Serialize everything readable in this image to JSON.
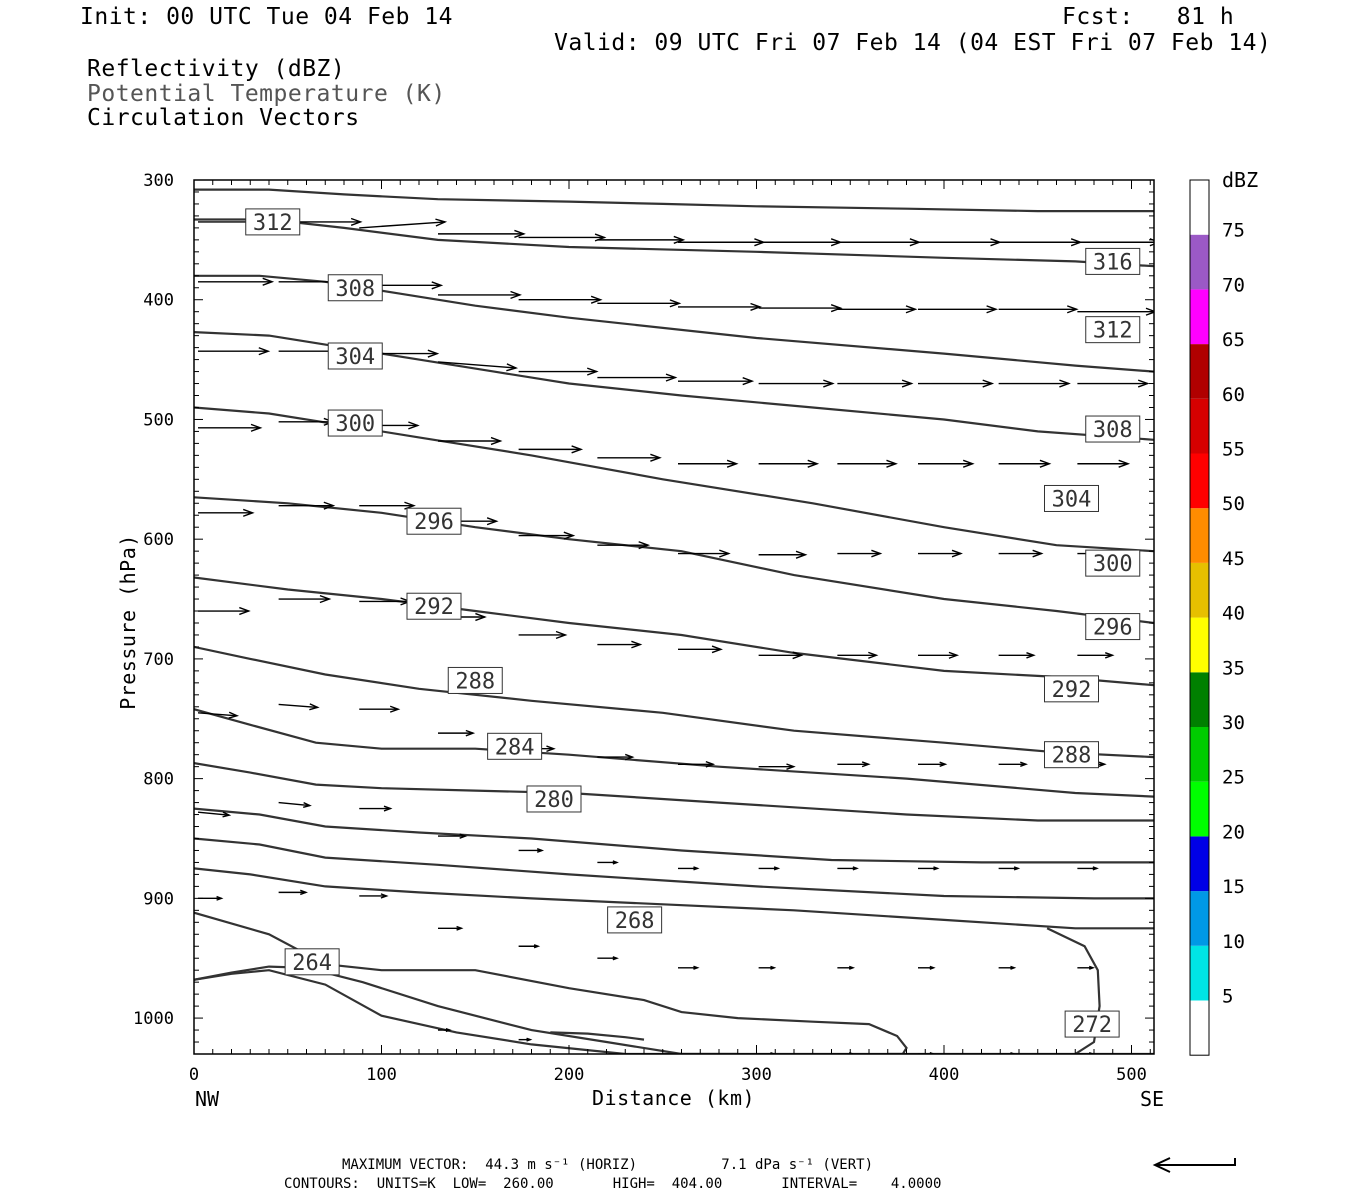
{
  "header": {
    "init": "Init: 00 UTC Tue 04 Feb 14",
    "fcst": "Fcst:   81 h",
    "valid": "Valid: 09 UTC Fri 07 Feb 14 (04 EST Fri 07 Feb 14)",
    "field1": "Reflectivity (dBZ)",
    "field2": "Potential Temperature (K)",
    "field3": "Circulation Vectors"
  },
  "footer": {
    "max_vector": "MAXIMUM VECTOR:  44.3 m s⁻¹ (HORIZ)          7.1 dPa s⁻¹ (VERT)",
    "contours": "CONTOURS:  UNITS=K  LOW=  260.00       HIGH=  404.00       INTERVAL=    4.0000"
  },
  "colorbar": {
    "unit": "dBZ",
    "labels": [
      "5",
      "10",
      "15",
      "20",
      "25",
      "30",
      "35",
      "40",
      "45",
      "50",
      "55",
      "60",
      "65",
      "70",
      "75"
    ],
    "colors": [
      "#ffffff",
      "#00e5e5",
      "#0099e6",
      "#0000e6",
      "#00ff00",
      "#00cc00",
      "#008000",
      "#ffff00",
      "#e6c000",
      "#ff8c00",
      "#ff0000",
      "#d60000",
      "#b00000",
      "#ff00ff",
      "#9b59c6",
      "#ffffff"
    ]
  },
  "chart_data": {
    "type": "cross-section",
    "xlabel": "Distance (km)",
    "ylabel": "Pressure (hPa)",
    "xlim": [
      0,
      512
    ],
    "ylim": [
      300,
      1030
    ],
    "x_ticks": [
      "0",
      "100",
      "200",
      "300",
      "400",
      "500"
    ],
    "x_tick_values": [
      0,
      100,
      200,
      300,
      400,
      500
    ],
    "y_ticks": [
      "300",
      "400",
      "500",
      "600",
      "700",
      "800",
      "900",
      "1000"
    ],
    "y_tick_values": [
      300,
      400,
      500,
      600,
      700,
      800,
      900,
      1000
    ],
    "endpoints": {
      "left": "NW",
      "right": "SE"
    },
    "contour_labels": [
      {
        "label": "312",
        "x": 42,
        "p": 335
      },
      {
        "label": "308",
        "x": 86,
        "p": 390
      },
      {
        "label": "304",
        "x": 86,
        "p": 447
      },
      {
        "label": "300",
        "x": 86,
        "p": 503
      },
      {
        "label": "296",
        "x": 128,
        "p": 585
      },
      {
        "label": "292",
        "x": 128,
        "p": 656
      },
      {
        "label": "288",
        "x": 150,
        "p": 718
      },
      {
        "label": "284",
        "x": 171,
        "p": 773
      },
      {
        "label": "280",
        "x": 192,
        "p": 817
      },
      {
        "label": "268",
        "x": 235,
        "p": 918
      },
      {
        "label": "264",
        "x": 63,
        "p": 953
      },
      {
        "label": "316",
        "x": 490,
        "p": 368
      },
      {
        "label": "312",
        "x": 490,
        "p": 425
      },
      {
        "label": "308",
        "x": 490,
        "p": 508
      },
      {
        "label": "304",
        "x": 468,
        "p": 566
      },
      {
        "label": "300",
        "x": 490,
        "p": 620
      },
      {
        "label": "296",
        "x": 490,
        "p": 673
      },
      {
        "label": "292",
        "x": 468,
        "p": 725
      },
      {
        "label": "288",
        "x": 468,
        "p": 780
      },
      {
        "label": "272",
        "x": 479,
        "p": 1005
      }
    ],
    "contours": [
      {
        "x": [
          0,
          40,
          80,
          130,
          200,
          250,
          300,
          380,
          450,
          512
        ],
        "p": [
          308,
          308,
          312,
          316,
          318,
          320,
          322,
          324,
          326,
          326
        ]
      },
      {
        "x": [
          0,
          40,
          80,
          130,
          200,
          300,
          400,
          470,
          512
        ],
        "p": [
          333,
          333,
          340,
          350,
          356,
          360,
          365,
          368,
          372
        ]
      },
      {
        "x": [
          0,
          35,
          70,
          110,
          150,
          200,
          300,
          400,
          470,
          512
        ],
        "p": [
          380,
          380,
          385,
          395,
          405,
          415,
          432,
          445,
          455,
          460
        ]
      },
      {
        "x": [
          0,
          40,
          80,
          120,
          160,
          200,
          260,
          330,
          400,
          450,
          512
        ],
        "p": [
          427,
          430,
          440,
          450,
          460,
          470,
          480,
          490,
          500,
          510,
          517
        ]
      },
      {
        "x": [
          0,
          40,
          80,
          120,
          180,
          250,
          330,
          400,
          460,
          512
        ],
        "p": [
          490,
          495,
          505,
          515,
          530,
          550,
          570,
          590,
          605,
          610
        ]
      },
      {
        "x": [
          0,
          50,
          100,
          150,
          200,
          260,
          320,
          400,
          460,
          512
        ],
        "p": [
          565,
          570,
          578,
          590,
          600,
          610,
          630,
          650,
          660,
          670
        ]
      },
      {
        "x": [
          0,
          50,
          100,
          150,
          200,
          260,
          320,
          400,
          460,
          512
        ],
        "p": [
          632,
          642,
          650,
          660,
          670,
          680,
          695,
          710,
          715,
          722
        ]
      },
      {
        "x": [
          0,
          30,
          70,
          120,
          180,
          250,
          320,
          400,
          460,
          512
        ],
        "p": [
          690,
          700,
          713,
          725,
          735,
          745,
          760,
          770,
          778,
          782
        ]
      },
      {
        "x": [
          0,
          30,
          65,
          100,
          150,
          200,
          280,
          380,
          470,
          512
        ],
        "p": [
          742,
          755,
          770,
          775,
          775,
          780,
          790,
          800,
          812,
          815
        ]
      },
      {
        "x": [
          0,
          30,
          65,
          100,
          150,
          200,
          280,
          380,
          450,
          512
        ],
        "p": [
          787,
          795,
          805,
          808,
          810,
          812,
          820,
          830,
          835,
          835
        ]
      },
      {
        "x": [
          0,
          35,
          70,
          120,
          180,
          260,
          340,
          420,
          512
        ],
        "p": [
          825,
          830,
          840,
          845,
          850,
          860,
          868,
          870,
          870
        ]
      },
      {
        "x": [
          0,
          35,
          70,
          130,
          200,
          300,
          400,
          480,
          512
        ],
        "p": [
          850,
          855,
          866,
          872,
          880,
          890,
          898,
          900,
          900
        ]
      },
      {
        "x": [
          0,
          30,
          70,
          120,
          180,
          250,
          320,
          400,
          470,
          512
        ],
        "p": [
          875,
          880,
          890,
          895,
          900,
          905,
          910,
          918,
          925,
          925
        ]
      },
      {
        "x": [
          0,
          40,
          70,
          100,
          150,
          200,
          240,
          260,
          290,
          330,
          360,
          375,
          380,
          378,
          370
        ],
        "p": [
          912,
          930,
          955,
          960,
          960,
          975,
          985,
          995,
          1000,
          1003,
          1005,
          1015,
          1025,
          1030,
          1030
        ]
      },
      {
        "x": [
          455,
          475,
          482,
          483,
          480,
          470
        ],
        "p": [
          925,
          940,
          960,
          990,
          1020,
          1030
        ]
      },
      {
        "x": [
          0,
          20,
          40,
          60,
          90,
          130,
          180,
          220,
          260,
          290
        ],
        "p": [
          968,
          962,
          957,
          958,
          970,
          990,
          1010,
          1020,
          1030,
          1030
        ]
      },
      {
        "x": [
          0,
          20,
          40,
          70,
          100,
          140,
          180,
          230,
          280,
          350,
          420,
          512
        ],
        "p": [
          968,
          963,
          960,
          972,
          998,
          1012,
          1022,
          1030,
          1030,
          1030,
          1030,
          1030
        ]
      },
      {
        "x": [
          190,
          210,
          230,
          240
        ],
        "p": [
          1012,
          1013,
          1016,
          1018
        ]
      }
    ],
    "vectors": [
      {
        "x": 0,
        "p": 335,
        "u": 38,
        "w": 0
      },
      {
        "x": 43,
        "p": 335,
        "u": 42,
        "w": 0
      },
      {
        "x": 86,
        "p": 340,
        "u": 44,
        "w": 2
      },
      {
        "x": 128,
        "p": 345,
        "u": 44,
        "w": 0
      },
      {
        "x": 171,
        "p": 348,
        "u": 44,
        "w": 0
      },
      {
        "x": 213,
        "p": 350,
        "u": 44,
        "w": 0
      },
      {
        "x": 256,
        "p": 352,
        "u": 44,
        "w": 0
      },
      {
        "x": 299,
        "p": 352,
        "u": 42,
        "w": 0
      },
      {
        "x": 341,
        "p": 352,
        "u": 42,
        "w": 0
      },
      {
        "x": 384,
        "p": 352,
        "u": 42,
        "w": 0
      },
      {
        "x": 427,
        "p": 352,
        "u": 42,
        "w": 0
      },
      {
        "x": 469,
        "p": 352,
        "u": 42,
        "w": 0
      },
      {
        "x": 0,
        "p": 385,
        "u": 38,
        "w": 0
      },
      {
        "x": 43,
        "p": 385,
        "u": 42,
        "w": 0
      },
      {
        "x": 86,
        "p": 388,
        "u": 42,
        "w": 0
      },
      {
        "x": 128,
        "p": 396,
        "u": 42,
        "w": 0
      },
      {
        "x": 171,
        "p": 400,
        "u": 42,
        "w": 0
      },
      {
        "x": 213,
        "p": 403,
        "u": 42,
        "w": 0
      },
      {
        "x": 256,
        "p": 406,
        "u": 42,
        "w": 0
      },
      {
        "x": 299,
        "p": 407,
        "u": 42,
        "w": 0
      },
      {
        "x": 341,
        "p": 408,
        "u": 40,
        "w": 0
      },
      {
        "x": 384,
        "p": 408,
        "u": 40,
        "w": 0
      },
      {
        "x": 427,
        "p": 408,
        "u": 40,
        "w": 0
      },
      {
        "x": 469,
        "p": 410,
        "u": 40,
        "w": 0
      },
      {
        "x": 0,
        "p": 443,
        "u": 36,
        "w": 0
      },
      {
        "x": 43,
        "p": 443,
        "u": 40,
        "w": 0
      },
      {
        "x": 86,
        "p": 445,
        "u": 40,
        "w": 0
      },
      {
        "x": 128,
        "p": 452,
        "u": 40,
        "w": -2
      },
      {
        "x": 171,
        "p": 460,
        "u": 40,
        "w": 0
      },
      {
        "x": 213,
        "p": 465,
        "u": 40,
        "w": 0
      },
      {
        "x": 256,
        "p": 468,
        "u": 38,
        "w": 0
      },
      {
        "x": 299,
        "p": 470,
        "u": 38,
        "w": 0
      },
      {
        "x": 341,
        "p": 470,
        "u": 38,
        "w": 0
      },
      {
        "x": 384,
        "p": 470,
        "u": 38,
        "w": 0
      },
      {
        "x": 427,
        "p": 470,
        "u": 36,
        "w": 0
      },
      {
        "x": 469,
        "p": 470,
        "u": 36,
        "w": 0
      },
      {
        "x": 0,
        "p": 507,
        "u": 32,
        "w": 0
      },
      {
        "x": 43,
        "p": 502,
        "u": 28,
        "w": 0
      },
      {
        "x": 86,
        "p": 505,
        "u": 30,
        "w": 0
      },
      {
        "x": 128,
        "p": 518,
        "u": 32,
        "w": 0
      },
      {
        "x": 171,
        "p": 525,
        "u": 32,
        "w": 0
      },
      {
        "x": 213,
        "p": 532,
        "u": 32,
        "w": 0
      },
      {
        "x": 256,
        "p": 537,
        "u": 30,
        "w": 0
      },
      {
        "x": 299,
        "p": 537,
        "u": 30,
        "w": 0
      },
      {
        "x": 341,
        "p": 537,
        "u": 30,
        "w": 0
      },
      {
        "x": 384,
        "p": 537,
        "u": 28,
        "w": 0
      },
      {
        "x": 427,
        "p": 537,
        "u": 26,
        "w": 0
      },
      {
        "x": 469,
        "p": 537,
        "u": 26,
        "w": 0
      },
      {
        "x": 0,
        "p": 578,
        "u": 28,
        "w": 0
      },
      {
        "x": 43,
        "p": 572,
        "u": 28,
        "w": 0
      },
      {
        "x": 86,
        "p": 572,
        "u": 28,
        "w": 0
      },
      {
        "x": 128,
        "p": 585,
        "u": 30,
        "w": 0
      },
      {
        "x": 171,
        "p": 597,
        "u": 28,
        "w": 0
      },
      {
        "x": 213,
        "p": 605,
        "u": 26,
        "w": 0
      },
      {
        "x": 256,
        "p": 612,
        "u": 26,
        "w": 0
      },
      {
        "x": 299,
        "p": 613,
        "u": 24,
        "w": 0
      },
      {
        "x": 341,
        "p": 612,
        "u": 22,
        "w": 0
      },
      {
        "x": 384,
        "p": 612,
        "u": 22,
        "w": 0
      },
      {
        "x": 427,
        "p": 612,
        "u": 22,
        "w": 0
      },
      {
        "x": 469,
        "p": 612,
        "u": 22,
        "w": 0
      },
      {
        "x": 0,
        "p": 660,
        "u": 26,
        "w": 0
      },
      {
        "x": 43,
        "p": 650,
        "u": 26,
        "w": 0
      },
      {
        "x": 86,
        "p": 652,
        "u": 26,
        "w": 0
      },
      {
        "x": 128,
        "p": 665,
        "u": 24,
        "w": 0
      },
      {
        "x": 171,
        "p": 680,
        "u": 24,
        "w": 0
      },
      {
        "x": 213,
        "p": 688,
        "u": 22,
        "w": 0
      },
      {
        "x": 256,
        "p": 692,
        "u": 22,
        "w": 0
      },
      {
        "x": 299,
        "p": 697,
        "u": 22,
        "w": 0
      },
      {
        "x": 341,
        "p": 697,
        "u": 20,
        "w": 0
      },
      {
        "x": 384,
        "p": 697,
        "u": 20,
        "w": 0
      },
      {
        "x": 427,
        "p": 697,
        "u": 18,
        "w": 0
      },
      {
        "x": 469,
        "p": 697,
        "u": 18,
        "w": 0
      },
      {
        "x": 0,
        "p": 745,
        "u": 20,
        "w": -1
      },
      {
        "x": 43,
        "p": 738,
        "u": 20,
        "w": -1
      },
      {
        "x": 86,
        "p": 742,
        "u": 20,
        "w": 0
      },
      {
        "x": 128,
        "p": 762,
        "u": 18,
        "w": 0
      },
      {
        "x": 171,
        "p": 775,
        "u": 18,
        "w": 0
      },
      {
        "x": 213,
        "p": 782,
        "u": 18,
        "w": 0
      },
      {
        "x": 256,
        "p": 788,
        "u": 18,
        "w": 0
      },
      {
        "x": 299,
        "p": 790,
        "u": 18,
        "w": 0
      },
      {
        "x": 341,
        "p": 788,
        "u": 16,
        "w": 0
      },
      {
        "x": 384,
        "p": 788,
        "u": 14,
        "w": 0
      },
      {
        "x": 427,
        "p": 788,
        "u": 14,
        "w": 0
      },
      {
        "x": 469,
        "p": 788,
        "u": 14,
        "w": 0
      },
      {
        "x": 0,
        "p": 828,
        "u": 16,
        "w": -1
      },
      {
        "x": 43,
        "p": 820,
        "u": 16,
        "w": -1
      },
      {
        "x": 86,
        "p": 825,
        "u": 16,
        "w": 0
      },
      {
        "x": 128,
        "p": 848,
        "u": 14,
        "w": 0
      },
      {
        "x": 171,
        "p": 860,
        "u": 12,
        "w": 0
      },
      {
        "x": 213,
        "p": 870,
        "u": 10,
        "w": 0
      },
      {
        "x": 256,
        "p": 875,
        "u": 10,
        "w": 0
      },
      {
        "x": 299,
        "p": 875,
        "u": 10,
        "w": 0
      },
      {
        "x": 341,
        "p": 875,
        "u": 10,
        "w": 0
      },
      {
        "x": 384,
        "p": 875,
        "u": 10,
        "w": 0
      },
      {
        "x": 427,
        "p": 875,
        "u": 10,
        "w": 0
      },
      {
        "x": 469,
        "p": 875,
        "u": 10,
        "w": 0
      },
      {
        "x": 0,
        "p": 900,
        "u": 12,
        "w": 0
      },
      {
        "x": 43,
        "p": 895,
        "u": 14,
        "w": 0
      },
      {
        "x": 86,
        "p": 898,
        "u": 14,
        "w": 0
      },
      {
        "x": 128,
        "p": 925,
        "u": 12,
        "w": 0
      },
      {
        "x": 171,
        "p": 940,
        "u": 10,
        "w": 0
      },
      {
        "x": 213,
        "p": 950,
        "u": 10,
        "w": 0
      },
      {
        "x": 256,
        "p": 958,
        "u": 10,
        "w": 0
      },
      {
        "x": 299,
        "p": 958,
        "u": 8,
        "w": 0
      },
      {
        "x": 341,
        "p": 958,
        "u": 8,
        "w": 0
      },
      {
        "x": 384,
        "p": 958,
        "u": 8,
        "w": 0
      },
      {
        "x": 427,
        "p": 958,
        "u": 8,
        "w": 0
      },
      {
        "x": 469,
        "p": 958,
        "u": 8,
        "w": 0
      },
      {
        "x": 128,
        "p": 1010,
        "u": 6,
        "w": 0
      },
      {
        "x": 171,
        "p": 1018,
        "u": 6,
        "w": 0
      },
      {
        "x": 299,
        "p": 1030,
        "u": 8,
        "w": 0
      },
      {
        "x": 341,
        "p": 1030,
        "u": 8,
        "w": 0
      },
      {
        "x": 384,
        "p": 1030,
        "u": 8,
        "w": 0
      },
      {
        "x": 427,
        "p": 1030,
        "u": 8,
        "w": 0
      },
      {
        "x": 469,
        "p": 1030,
        "u": 8,
        "w": 0
      }
    ]
  }
}
